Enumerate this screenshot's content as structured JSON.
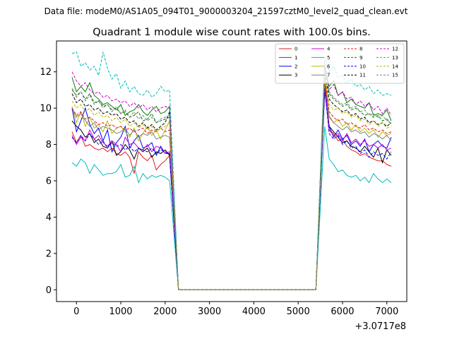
{
  "suptitle": "Data file: modeM0/AS1A05_094T01_9000003204_21597cztM0_level2_quad_clean.evt",
  "chart_data": {
    "type": "line",
    "title": "Quadrant 1 module wise count rates with 100.0s bins.",
    "xlabel": "",
    "ylabel": "",
    "x_offset_label": "+3.0717e8",
    "xlim": [
      -450,
      7450
    ],
    "ylim": [
      -0.65,
      13.7
    ],
    "xticks": [
      0,
      1000,
      2000,
      3000,
      4000,
      5000,
      6000,
      7000
    ],
    "yticks": [
      0,
      2,
      4,
      6,
      8,
      10,
      12
    ],
    "grid": false,
    "legend_position": "top-right",
    "legend_columns": 4,
    "x_segments": {
      "first": {
        "start": -100,
        "step": 100,
        "count": 23
      },
      "zero": [
        2300,
        5400
      ],
      "second": {
        "start": 5600,
        "step": 100,
        "count": 16
      }
    },
    "series": [
      {
        "name": "0",
        "color": "#e41a1c",
        "dash": "solid",
        "seg1": [
          8.7,
          8.1,
          8.5,
          7.9,
          8.0,
          7.8,
          7.7,
          7.8,
          7.6,
          7.8,
          7.5,
          7.4,
          7.6,
          7.3,
          6.4,
          7.6,
          7.3,
          7.1,
          7.4,
          6.6,
          6.9,
          7.1,
          7.4
        ],
        "seg2": [
          11.0,
          8.8,
          8.6,
          8.2,
          8.3,
          7.9,
          7.7,
          7.6,
          7.4,
          7.5,
          7.3,
          7.2,
          7.1,
          7.1,
          6.9,
          6.8
        ]
      },
      {
        "name": "1",
        "color": "#008000",
        "dash": "solid",
        "seg1": [
          11.7,
          10.9,
          11.2,
          10.9,
          11.4,
          10.7,
          10.5,
          10.2,
          10.3,
          10.1,
          9.9,
          10.2,
          9.6,
          9.8,
          9.9,
          10.2,
          9.8,
          9.6,
          9.9,
          10.1,
          9.7,
          9.8,
          10.1
        ],
        "seg2": [
          12.3,
          11.2,
          11.5,
          10.7,
          10.9,
          10.3,
          10.5,
          10.2,
          10.1,
          10.0,
          10.3,
          9.6,
          9.7,
          9.6,
          9.9,
          9.3
        ]
      },
      {
        "name": "2",
        "color": "#0000ff",
        "dash": "solid",
        "seg1": [
          10.0,
          8.7,
          9.3,
          10.0,
          9.1,
          8.6,
          8.9,
          8.2,
          8.8,
          7.6,
          8.1,
          8.4,
          9.0,
          7.8,
          8.2,
          8.5,
          7.8,
          7.9,
          8.1,
          7.4,
          7.9,
          7.5,
          7.5
        ],
        "seg2": [
          11.0,
          9.0,
          8.4,
          8.8,
          8.3,
          8.5,
          8.0,
          8.2,
          7.9,
          8.3,
          7.6,
          8.0,
          8.2,
          7.9,
          7.8,
          8.4
        ]
      },
      {
        "name": "3",
        "color": "#000000",
        "dash": "solid",
        "seg1": [
          9.3,
          9.0,
          8.8,
          8.4,
          8.6,
          8.1,
          8.3,
          7.9,
          7.8,
          8.2,
          7.4,
          7.6,
          8.0,
          7.7,
          7.2,
          7.8,
          7.6,
          7.8,
          7.3,
          7.6,
          7.5,
          7.7,
          7.4
        ],
        "seg2": [
          11.2,
          9.0,
          8.7,
          8.4,
          8.1,
          8.2,
          7.9,
          7.8,
          7.6,
          7.9,
          7.6,
          7.3,
          7.8,
          7.0,
          7.7,
          7.4
        ]
      },
      {
        "name": "4",
        "color": "#cc00cc",
        "dash": "solid",
        "seg1": [
          8.5,
          8.0,
          8.4,
          8.2,
          8.8,
          8.3,
          8.5,
          8.1,
          7.9,
          8.2,
          8.0,
          7.6,
          8.4,
          8.0,
          8.1,
          7.8,
          7.7,
          8.0,
          7.6,
          7.9,
          7.8,
          7.5,
          7.6
        ],
        "seg2": [
          11.4,
          8.8,
          8.5,
          8.6,
          8.2,
          8.6,
          8.1,
          8.3,
          8.0,
          8.2,
          7.9,
          8.0,
          7.8,
          8.0,
          7.7,
          7.8
        ]
      },
      {
        "name": "5",
        "color": "#00bbbb",
        "dash": "solid",
        "seg1": [
          7.0,
          6.8,
          7.2,
          7.0,
          6.4,
          6.9,
          6.6,
          6.3,
          6.4,
          6.4,
          6.5,
          6.9,
          6.2,
          6.3,
          6.8,
          5.9,
          6.4,
          6.1,
          6.3,
          6.2,
          6.3,
          6.2,
          6.0
        ],
        "seg2": [
          9.0,
          7.2,
          6.9,
          6.5,
          6.6,
          6.3,
          6.2,
          6.3,
          6.0,
          6.2,
          5.9,
          6.4,
          6.1,
          5.9,
          6.1,
          5.9
        ]
      },
      {
        "name": "6",
        "color": "#bbbb00",
        "dash": "solid",
        "seg1": [
          10.1,
          9.2,
          9.8,
          9.0,
          9.5,
          8.9,
          9.1,
          8.7,
          9.3,
          8.6,
          8.9,
          9.0,
          8.7,
          8.4,
          8.9,
          8.2,
          8.6,
          9.0,
          8.5,
          8.8,
          8.3,
          8.8,
          9.3
        ],
        "seg2": [
          11.9,
          9.6,
          9.2,
          9.4,
          9.0,
          9.2,
          8.8,
          9.1,
          8.7,
          8.9,
          8.6,
          8.8,
          8.4,
          8.7,
          8.5,
          8.6
        ]
      },
      {
        "name": "7",
        "color": "#808080",
        "dash": "solid",
        "seg1": [
          10.0,
          9.5,
          9.7,
          9.3,
          9.0,
          9.2,
          8.8,
          9.0,
          8.9,
          8.8,
          8.6,
          8.7,
          8.9,
          8.5,
          8.8,
          8.4,
          8.6,
          8.5,
          8.7,
          8.3,
          8.4,
          8.5,
          8.4
        ],
        "seg2": [
          11.5,
          9.5,
          9.2,
          9.0,
          8.8,
          9.0,
          8.7,
          8.8,
          8.6,
          8.7,
          8.4,
          8.6,
          8.5,
          8.3,
          8.5,
          8.2
        ]
      },
      {
        "name": "8",
        "color": "#e41a1c",
        "dash": "dashed",
        "seg1": [
          10.0,
          9.6,
          9.8,
          9.4,
          9.5,
          9.3,
          9.1,
          9.2,
          9.0,
          9.1,
          8.9,
          9.0,
          8.8,
          8.9,
          8.7,
          8.8,
          8.9,
          8.6,
          8.8,
          8.7,
          8.9,
          8.7,
          8.8
        ],
        "seg2": [
          11.6,
          9.8,
          9.5,
          9.3,
          9.4,
          9.1,
          9.2,
          9.0,
          8.9,
          9.1,
          8.8,
          8.9,
          8.7,
          8.8,
          8.6,
          8.7
        ]
      },
      {
        "name": "9",
        "color": "#008000",
        "dash": "dashed",
        "seg1": [
          11.0,
          10.7,
          10.9,
          10.5,
          10.8,
          10.3,
          10.4,
          10.1,
          10.2,
          9.9,
          10.0,
          9.7,
          9.8,
          9.5,
          9.6,
          9.8,
          9.3,
          9.4,
          9.7,
          9.2,
          9.3,
          9.4,
          9.5
        ],
        "seg2": [
          12.4,
          10.8,
          10.5,
          10.3,
          10.1,
          10.2,
          9.9,
          10.0,
          9.8,
          9.6,
          9.7,
          9.5,
          9.6,
          9.3,
          9.4,
          9.1
        ]
      },
      {
        "name": "10",
        "color": "#0000ff",
        "dash": "dashed",
        "seg1": [
          8.4,
          8.1,
          8.5,
          8.2,
          8.6,
          8.3,
          8.0,
          8.2,
          7.8,
          8.1,
          7.9,
          8.0,
          7.7,
          7.9,
          7.6,
          7.8,
          7.7,
          7.6,
          7.8,
          7.5,
          7.7,
          7.6,
          7.5
        ],
        "seg2": [
          11.1,
          8.6,
          8.3,
          8.5,
          8.0,
          8.2,
          7.8,
          7.9,
          7.5,
          7.7,
          7.3,
          7.6,
          7.4,
          7.5,
          7.2,
          7.6
        ]
      },
      {
        "name": "11",
        "color": "#000000",
        "dash": "dashed",
        "seg1": [
          10.8,
          10.3,
          10.5,
          10.1,
          10.2,
          9.9,
          10.0,
          9.7,
          9.8,
          9.6,
          9.7,
          9.4,
          9.5,
          9.2,
          9.3,
          9.0,
          9.2,
          8.9,
          9.1,
          8.8,
          9.0,
          9.2,
          9.8
        ],
        "seg2": [
          12.0,
          10.5,
          10.2,
          10.0,
          9.8,
          9.9,
          9.6,
          9.7,
          9.4,
          9.5,
          9.2,
          9.3,
          9.1,
          9.2,
          9.0,
          9.2
        ]
      },
      {
        "name": "12",
        "color": "#cc00cc",
        "dash": "dashed",
        "seg1": [
          12.0,
          11.5,
          11.2,
          11.4,
          11.0,
          10.8,
          10.9,
          10.6,
          10.7,
          10.4,
          10.5,
          10.3,
          10.4,
          10.1,
          10.3,
          10.0,
          10.2,
          9.9,
          10.1,
          9.8,
          10.0,
          10.1,
          10.0
        ],
        "seg2": [
          12.5,
          11.0,
          11.3,
          10.7,
          10.9,
          10.5,
          10.6,
          10.2,
          10.4,
          10.1,
          10.3,
          9.9,
          10.1,
          9.7,
          10.0,
          9.6
        ]
      },
      {
        "name": "13",
        "color": "#00bbbb",
        "dash": "dashed",
        "seg1": [
          13.0,
          13.1,
          12.3,
          12.5,
          12.1,
          12.3,
          11.8,
          13.1,
          12.2,
          11.6,
          11.9,
          11.1,
          11.5,
          10.9,
          11.2,
          10.8,
          10.7,
          11.0,
          10.6,
          10.8,
          11.2,
          10.9,
          11.0
        ],
        "seg2": [
          12.8,
          12.0,
          12.3,
          11.7,
          11.8,
          11.4,
          11.6,
          11.2,
          11.3,
          11.0,
          11.2,
          10.8,
          11.0,
          10.7,
          10.8,
          10.7
        ]
      },
      {
        "name": "14",
        "color": "#bbbb00",
        "dash": "dashed",
        "seg1": [
          10.4,
          10.0,
          10.2,
          9.8,
          10.0,
          9.6,
          9.8,
          9.5,
          9.6,
          9.3,
          9.5,
          9.2,
          9.4,
          9.0,
          9.2,
          8.9,
          9.1,
          8.8,
          9.0,
          8.7,
          8.9,
          9.0,
          9.2
        ],
        "seg2": [
          11.8,
          10.2,
          9.9,
          10.0,
          9.7,
          9.8,
          9.5,
          9.6,
          9.3,
          9.4,
          9.1,
          9.3,
          9.0,
          9.2,
          8.9,
          9.0
        ]
      },
      {
        "name": "15",
        "color": "#808080",
        "dash": "dashed",
        "seg1": [
          11.1,
          10.6,
          10.9,
          10.4,
          10.7,
          10.2,
          10.4,
          10.0,
          10.2,
          9.8,
          10.1,
          9.7,
          9.9,
          9.5,
          9.8,
          9.4,
          9.6,
          9.3,
          9.5,
          9.2,
          9.4,
          9.5,
          9.6
        ],
        "seg2": [
          12.2,
          10.9,
          10.6,
          10.4,
          10.2,
          10.3,
          10.0,
          10.1,
          9.8,
          9.9,
          9.6,
          9.7,
          9.5,
          9.6,
          9.3,
          9.4
        ]
      }
    ]
  }
}
